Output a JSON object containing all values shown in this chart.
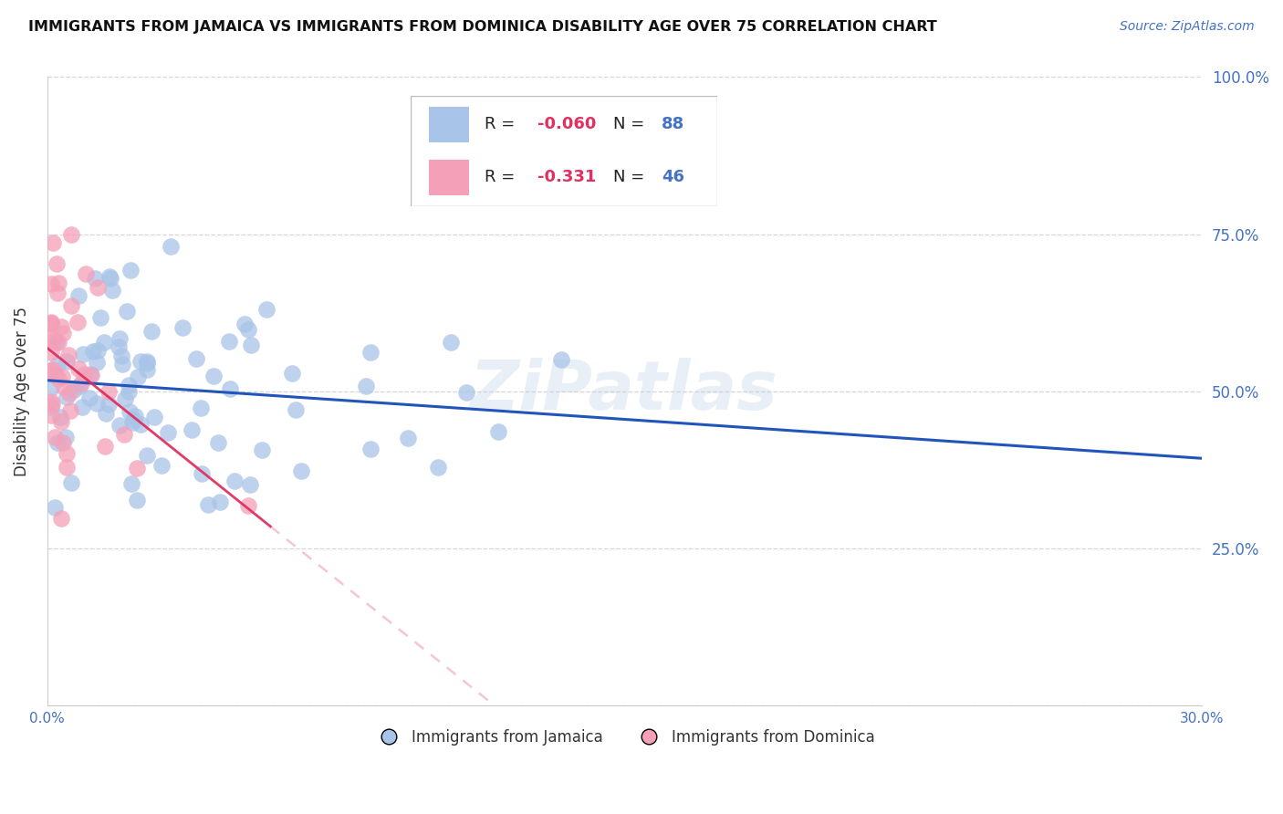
{
  "title": "IMMIGRANTS FROM JAMAICA VS IMMIGRANTS FROM DOMINICA DISABILITY AGE OVER 75 CORRELATION CHART",
  "source": "Source: ZipAtlas.com",
  "ylabel": "Disability Age Over 75",
  "watermark": "ZiPatlas",
  "legend_jamaica_r": "-0.060",
  "legend_jamaica_n": "88",
  "legend_dominica_r": "-0.331",
  "legend_dominica_n": "46",
  "color_jamaica": "#a8c4e8",
  "color_dominica": "#f4a0b8",
  "color_trendline_jamaica": "#2255bb",
  "color_trendline_dominica": "#e03060",
  "color_axis": "#4472c4",
  "color_grid": "#cccccc",
  "color_text": "#333333",
  "xlim": [
    0.0,
    0.3
  ],
  "ylim": [
    0.0,
    1.0
  ],
  "ytick_positions": [
    0.0,
    0.25,
    0.5,
    0.75,
    1.0
  ],
  "ytick_labels": [
    "",
    "25.0%",
    "50.0%",
    "75.0%",
    "100.0%"
  ],
  "xtick_labels_left": "0.0%",
  "xtick_labels_right": "30.0%",
  "bottom_legend_jamaica": "Immigrants from Jamaica",
  "bottom_legend_dominica": "Immigrants from Dominica"
}
